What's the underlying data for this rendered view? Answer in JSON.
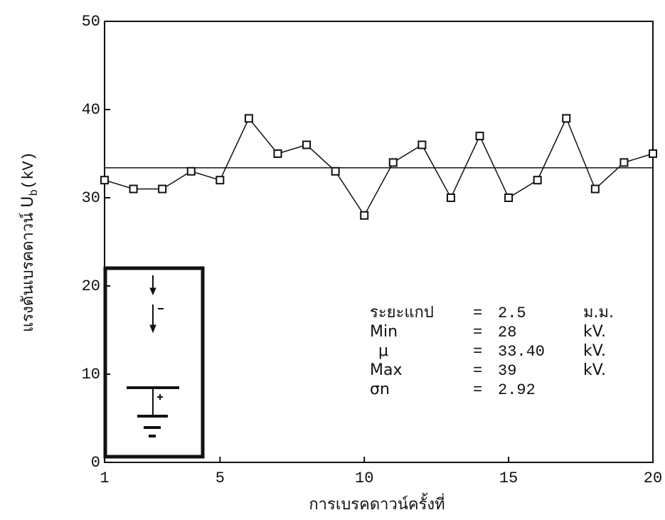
{
  "chart_data": {
    "type": "line",
    "xlabel": "การเบรคดาวน์ครั้งที่",
    "ylabel": {
      "text": "แรงดันเบรคดาวน์ U",
      "sub": "b",
      "unit": "(kV)"
    },
    "x": [
      1,
      2,
      3,
      4,
      5,
      6,
      7,
      8,
      9,
      10,
      11,
      12,
      13,
      14,
      15,
      16,
      17,
      18,
      19,
      20
    ],
    "series": [
      {
        "color": "#111111",
        "values": [
          32,
          31,
          31,
          33,
          32,
          39,
          35,
          36,
          33,
          28,
          34,
          36,
          30,
          37,
          30,
          32,
          39,
          31,
          34,
          35
        ]
      }
    ],
    "hline": 33.4,
    "xlim": [
      1,
      20
    ],
    "xticks": [
      1,
      5,
      10,
      15,
      20
    ],
    "ylim": [
      0,
      50
    ],
    "yticks": [
      0,
      10,
      20,
      30,
      40,
      50
    ],
    "annotation": [
      [
        "ระยะแกป",
        "=",
        "2.5",
        "ม.ม."
      ],
      [
        "Min",
        "=",
        "28",
        "kV."
      ],
      [
        "μ",
        "=",
        "33.40",
        "kV."
      ],
      [
        "Max",
        "=",
        "39",
        "kV."
      ],
      [
        "σn",
        "=",
        "2.92"
      ]
    ]
  }
}
